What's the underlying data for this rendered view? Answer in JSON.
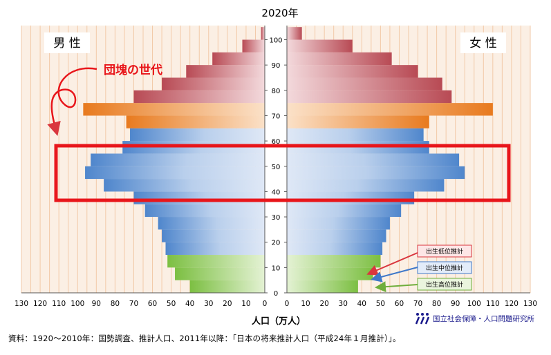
{
  "chart_data": {
    "type": "bar",
    "title": "2020年",
    "orientation": "horizontal-pyramid",
    "age_axis": {
      "ticks": [
        0,
        10,
        20,
        30,
        40,
        50,
        60,
        70,
        80,
        90,
        100
      ],
      "range": [
        0,
        105
      ]
    },
    "value_axis": {
      "ticks": [
        130,
        120,
        110,
        100,
        90,
        80,
        70,
        60,
        50,
        40,
        30,
        20,
        10,
        0
      ],
      "range": [
        0,
        130
      ]
    },
    "xlabel": "人口（万人）",
    "left_label": "男 性",
    "right_label": "女 性",
    "annotation": "団塊の世代",
    "legend": [
      "出生低位推計",
      "出生中位推計",
      "出生高位推計"
    ],
    "series": [
      {
        "name": "男性",
        "ages": [
          0,
          5,
          10,
          15,
          20,
          25,
          30,
          35,
          40,
          45,
          50,
          55,
          60,
          65,
          70,
          75,
          80,
          85,
          90,
          95,
          100
        ],
        "values": [
          40,
          48,
          52,
          53,
          55,
          57,
          64,
          70,
          86,
          96,
          93,
          76,
          72,
          74,
          97,
          70,
          55,
          42,
          28,
          12,
          2
        ]
      },
      {
        "name": "女性",
        "ages": [
          0,
          5,
          10,
          15,
          20,
          25,
          30,
          35,
          40,
          45,
          50,
          55,
          60,
          65,
          70,
          75,
          80,
          85,
          90,
          95,
          100
        ],
        "values": [
          38,
          46,
          50,
          51,
          53,
          55,
          61,
          68,
          84,
          95,
          92,
          76,
          73,
          76,
          110,
          88,
          83,
          70,
          56,
          35,
          8
        ]
      }
    ],
    "colors": {
      "age_0_14": "#7cbf42",
      "age_15_64": "#4f86cc",
      "age_65_74": "#e87a1e",
      "age_75_plus": "#b84a54",
      "highlight": "#e8161b",
      "plot_bg": "#fbefe4",
      "grid": "#f2c9a7"
    }
  },
  "source_note": "資料：1920～2010年：国勢調査、推計人口、2011年以降：「日本の将来推計人口（平成24年１月推計）」。",
  "logo_text": "国立社会保障・人口問題研究所"
}
